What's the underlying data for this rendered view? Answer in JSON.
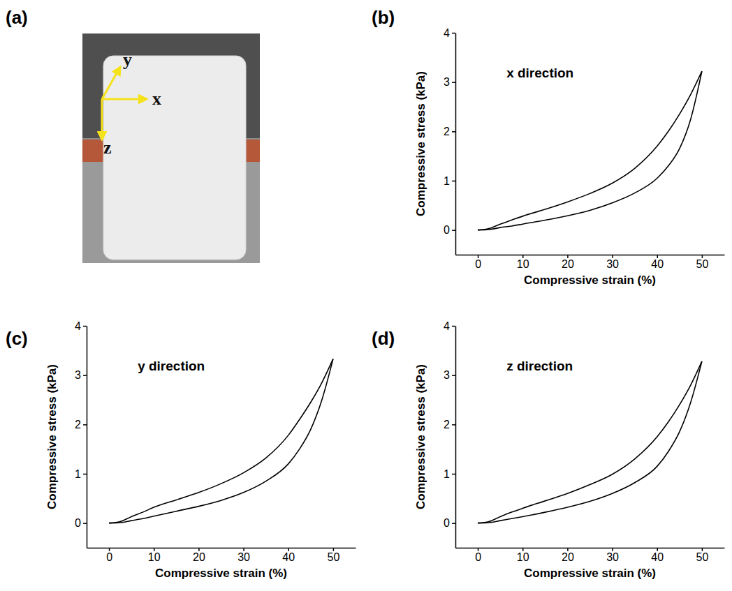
{
  "photo": {
    "panel": "(a)",
    "axis_labels": [
      "y",
      "x",
      "z"
    ]
  },
  "chart_data": [
    {
      "type": "line",
      "panel": "(b)",
      "annotation": "x direction",
      "x_label": "Compressive strain (%)",
      "y_label": "Compressive stress (kPa)",
      "x": [
        0,
        2.5,
        5,
        7.5,
        10,
        15,
        20,
        25,
        30,
        35,
        40,
        42.5,
        45,
        47.5,
        50
      ],
      "series": [
        {
          "color": "#000000",
          "values": [
            0,
            0.03,
            0.12,
            0.2,
            0.28,
            0.42,
            0.57,
            0.74,
            0.95,
            1.25,
            1.7,
            2.0,
            2.35,
            2.75,
            3.22
          ]
        },
        {
          "color": "#000000",
          "values": [
            0,
            0.01,
            0.05,
            0.08,
            0.12,
            0.2,
            0.29,
            0.4,
            0.55,
            0.75,
            1.05,
            1.3,
            1.65,
            2.25,
            3.22
          ]
        }
      ],
      "xlim": [
        -5,
        55
      ],
      "ylim": [
        -0.5,
        4
      ],
      "xticks": [
        0,
        10,
        20,
        30,
        40,
        50
      ],
      "yticks": [
        0,
        1,
        2,
        3,
        4
      ]
    },
    {
      "type": "line",
      "panel": "(c)",
      "annotation": "y direction",
      "x_label": "Compressive strain (%)",
      "y_label": "Compressive stress (kPa)",
      "x": [
        0,
        2.5,
        5,
        7.5,
        10,
        15,
        20,
        25,
        30,
        35,
        40,
        42.5,
        45,
        47.5,
        50
      ],
      "series": [
        {
          "color": "#000000",
          "values": [
            0,
            0.03,
            0.13,
            0.22,
            0.32,
            0.47,
            0.62,
            0.8,
            1.02,
            1.32,
            1.78,
            2.1,
            2.45,
            2.85,
            3.33
          ]
        },
        {
          "color": "#000000",
          "values": [
            0,
            0.01,
            0.05,
            0.09,
            0.14,
            0.24,
            0.34,
            0.46,
            0.62,
            0.85,
            1.2,
            1.5,
            1.9,
            2.5,
            3.33
          ]
        }
      ],
      "xlim": [
        -5,
        55
      ],
      "ylim": [
        -0.5,
        4
      ],
      "xticks": [
        0,
        10,
        20,
        30,
        40,
        50
      ],
      "yticks": [
        0,
        1,
        2,
        3,
        4
      ]
    },
    {
      "type": "line",
      "panel": "(d)",
      "annotation": "z direction",
      "x_label": "Compressive strain (%)",
      "y_label": "Compressive stress (kPa)",
      "x": [
        0,
        2.5,
        5,
        7.5,
        10,
        15,
        20,
        25,
        30,
        35,
        40,
        42.5,
        45,
        47.5,
        50
      ],
      "series": [
        {
          "color": "#000000",
          "values": [
            0,
            0.03,
            0.13,
            0.22,
            0.3,
            0.45,
            0.6,
            0.78,
            0.99,
            1.3,
            1.75,
            2.05,
            2.4,
            2.8,
            3.28
          ]
        },
        {
          "color": "#000000",
          "values": [
            0,
            0.01,
            0.05,
            0.09,
            0.13,
            0.22,
            0.32,
            0.44,
            0.6,
            0.82,
            1.15,
            1.45,
            1.85,
            2.45,
            3.28
          ]
        }
      ],
      "xlim": [
        -5,
        55
      ],
      "ylim": [
        -0.5,
        4
      ],
      "xticks": [
        0,
        10,
        20,
        30,
        40,
        50
      ],
      "yticks": [
        0,
        1,
        2,
        3,
        4
      ]
    }
  ]
}
